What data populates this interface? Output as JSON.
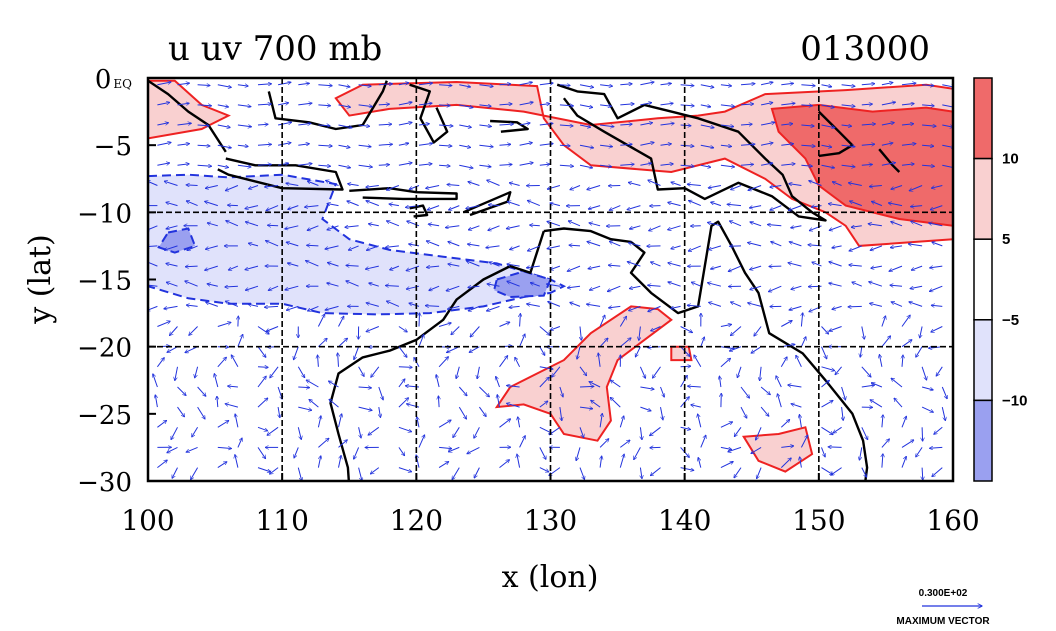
{
  "chart_data": {
    "type": "heatmap",
    "title_left": "u uv 700 mb",
    "title_right": "013000",
    "xlabel": "x (lon)",
    "ylabel": "y (lat)",
    "xlim": [
      100,
      160
    ],
    "ylim": [
      -30,
      0
    ],
    "x_ticks": [
      100,
      110,
      120,
      130,
      140,
      150,
      160
    ],
    "y_ticks": [
      0,
      -5,
      -10,
      -15,
      -20,
      -25,
      -30
    ],
    "y_tick_labels": [
      "0 EQ",
      "−5",
      "−10",
      "−15",
      "−20",
      "−25",
      "−30"
    ],
    "grid": true,
    "colorbar": {
      "placement": "right",
      "levels": [
        -10,
        -5,
        5,
        10
      ],
      "labels": [
        "−10",
        "−5",
        "5",
        "10"
      ],
      "colors": [
        "#9aa0f0",
        "#e0e2fb",
        "#ffffff",
        "#f9d0d0",
        "#ef6a6a"
      ]
    },
    "colors": {
      "positive_contour": "#ee2222",
      "negative_contour": "#2233dd",
      "coastline": "#000000",
      "vector": "#2233dd"
    },
    "vector_legend": {
      "value": "0.300E+02",
      "label": "MAXIMUM VECTOR"
    },
    "regions": [
      {
        "level": 5,
        "points": [
          [
            102,
            -0.2
          ],
          [
            104,
            -2
          ],
          [
            106,
            -2.8
          ],
          [
            104,
            -3.8
          ],
          [
            100,
            -4.5
          ],
          [
            100,
            -0.2
          ]
        ]
      },
      {
        "level": 5,
        "points": [
          [
            116,
            -0.5
          ],
          [
            123,
            -0.3
          ],
          [
            129,
            -0.6
          ],
          [
            129.5,
            -3
          ],
          [
            131,
            -5
          ],
          [
            133,
            -6.5
          ],
          [
            139,
            -7
          ],
          [
            143,
            -6
          ],
          [
            146,
            -7.5
          ],
          [
            148,
            -9
          ],
          [
            150.5,
            -10
          ],
          [
            152,
            -11
          ],
          [
            153,
            -12.5
          ],
          [
            160,
            -12
          ],
          [
            160,
            -0.8
          ],
          [
            158,
            -0.5
          ],
          [
            152,
            -0.9
          ],
          [
            146,
            -1.2
          ],
          [
            143,
            -2.5
          ],
          [
            141,
            -2.8
          ],
          [
            138,
            -3
          ],
          [
            133,
            -3.5
          ],
          [
            128,
            -2.5
          ],
          [
            123,
            -2
          ],
          [
            118,
            -2.3
          ],
          [
            115,
            -2.8
          ],
          [
            114,
            -1.5
          ]
        ]
      },
      {
        "level": 10,
        "points": [
          [
            146.5,
            -2.3
          ],
          [
            150,
            -2
          ],
          [
            154,
            -2.5
          ],
          [
            158,
            -2.2
          ],
          [
            160,
            -2.5
          ],
          [
            160,
            -11
          ],
          [
            156,
            -10.5
          ],
          [
            152,
            -9.5
          ],
          [
            150,
            -8
          ],
          [
            149,
            -6
          ],
          [
            147,
            -4
          ]
        ]
      },
      {
        "level": 5,
        "points": [
          [
            136,
            -17
          ],
          [
            138,
            -17.2
          ],
          [
            139,
            -18
          ],
          [
            137,
            -19.5
          ],
          [
            135,
            -21
          ],
          [
            134.2,
            -23
          ],
          [
            134.5,
            -25.5
          ],
          [
            133.5,
            -27
          ],
          [
            131,
            -26.5
          ],
          [
            130,
            -25
          ],
          [
            128,
            -24.3
          ],
          [
            126,
            -24.5
          ],
          [
            127,
            -23
          ],
          [
            129,
            -22
          ],
          [
            131,
            -21
          ],
          [
            133,
            -19
          ]
        ]
      },
      {
        "level": 5,
        "points": [
          [
            139,
            -20
          ],
          [
            140.3,
            -20
          ],
          [
            140.5,
            -21
          ],
          [
            139,
            -21
          ]
        ]
      },
      {
        "level": 5,
        "points": [
          [
            147,
            -26.5
          ],
          [
            149,
            -26
          ],
          [
            149.5,
            -28
          ],
          [
            147.5,
            -29.3
          ],
          [
            145.5,
            -28.5
          ],
          [
            144.4,
            -26.7
          ]
        ]
      },
      {
        "level": -5,
        "points": [
          [
            100,
            -7.3
          ],
          [
            103,
            -7.2
          ],
          [
            106,
            -7.4
          ],
          [
            110,
            -7.2
          ],
          [
            114,
            -7.9
          ],
          [
            113,
            -10.5
          ],
          [
            115,
            -12
          ],
          [
            118,
            -12.8
          ],
          [
            122,
            -13.3
          ],
          [
            126,
            -13.8
          ],
          [
            130,
            -15
          ],
          [
            131,
            -15.5
          ],
          [
            130,
            -16
          ],
          [
            128,
            -16.3
          ],
          [
            125,
            -17
          ],
          [
            121,
            -17.5
          ],
          [
            117,
            -17.6
          ],
          [
            113,
            -17.5
          ],
          [
            110,
            -16.8
          ],
          [
            106,
            -16.8
          ],
          [
            103,
            -16.4
          ],
          [
            100,
            -15.5
          ]
        ]
      },
      {
        "level": -10,
        "points": [
          [
            101.5,
            -11.5
          ],
          [
            103,
            -11.2
          ],
          [
            103.5,
            -12.5
          ],
          [
            102,
            -13
          ],
          [
            100.8,
            -12.6
          ]
        ]
      },
      {
        "level": -10,
        "points": [
          [
            126,
            -15
          ],
          [
            128,
            -14.4
          ],
          [
            130,
            -15
          ],
          [
            129.5,
            -16.2
          ],
          [
            127,
            -16.3
          ],
          [
            125.8,
            -15.8
          ]
        ]
      }
    ]
  }
}
